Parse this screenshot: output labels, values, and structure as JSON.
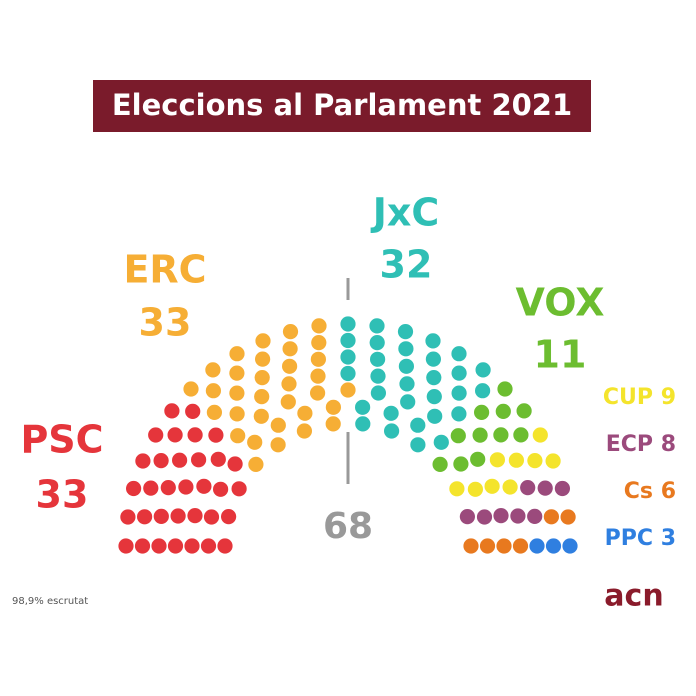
{
  "chart_data": {
    "type": "parliament",
    "title": "Eleccions al Parlament 2021",
    "majority": 68,
    "parties": [
      {
        "name": "PSC",
        "seats": 33,
        "color": "#e5353b"
      },
      {
        "name": "ERC",
        "seats": 33,
        "color": "#f6ae35"
      },
      {
        "name": "JxC",
        "seats": 32,
        "color": "#2fbfb5"
      },
      {
        "name": "VOX",
        "seats": 11,
        "color": "#6cbd30"
      },
      {
        "name": "CUP",
        "seats": 9,
        "color": "#f4e42c"
      },
      {
        "name": "ECP",
        "seats": 8,
        "color": "#9b4a7c"
      },
      {
        "name": "Cs",
        "seats": 6,
        "color": "#e8791f"
      },
      {
        "name": "PPC",
        "seats": 3,
        "color": "#2f7fe0"
      }
    ],
    "note": "98,9% escrutat",
    "logo": "acn"
  }
}
